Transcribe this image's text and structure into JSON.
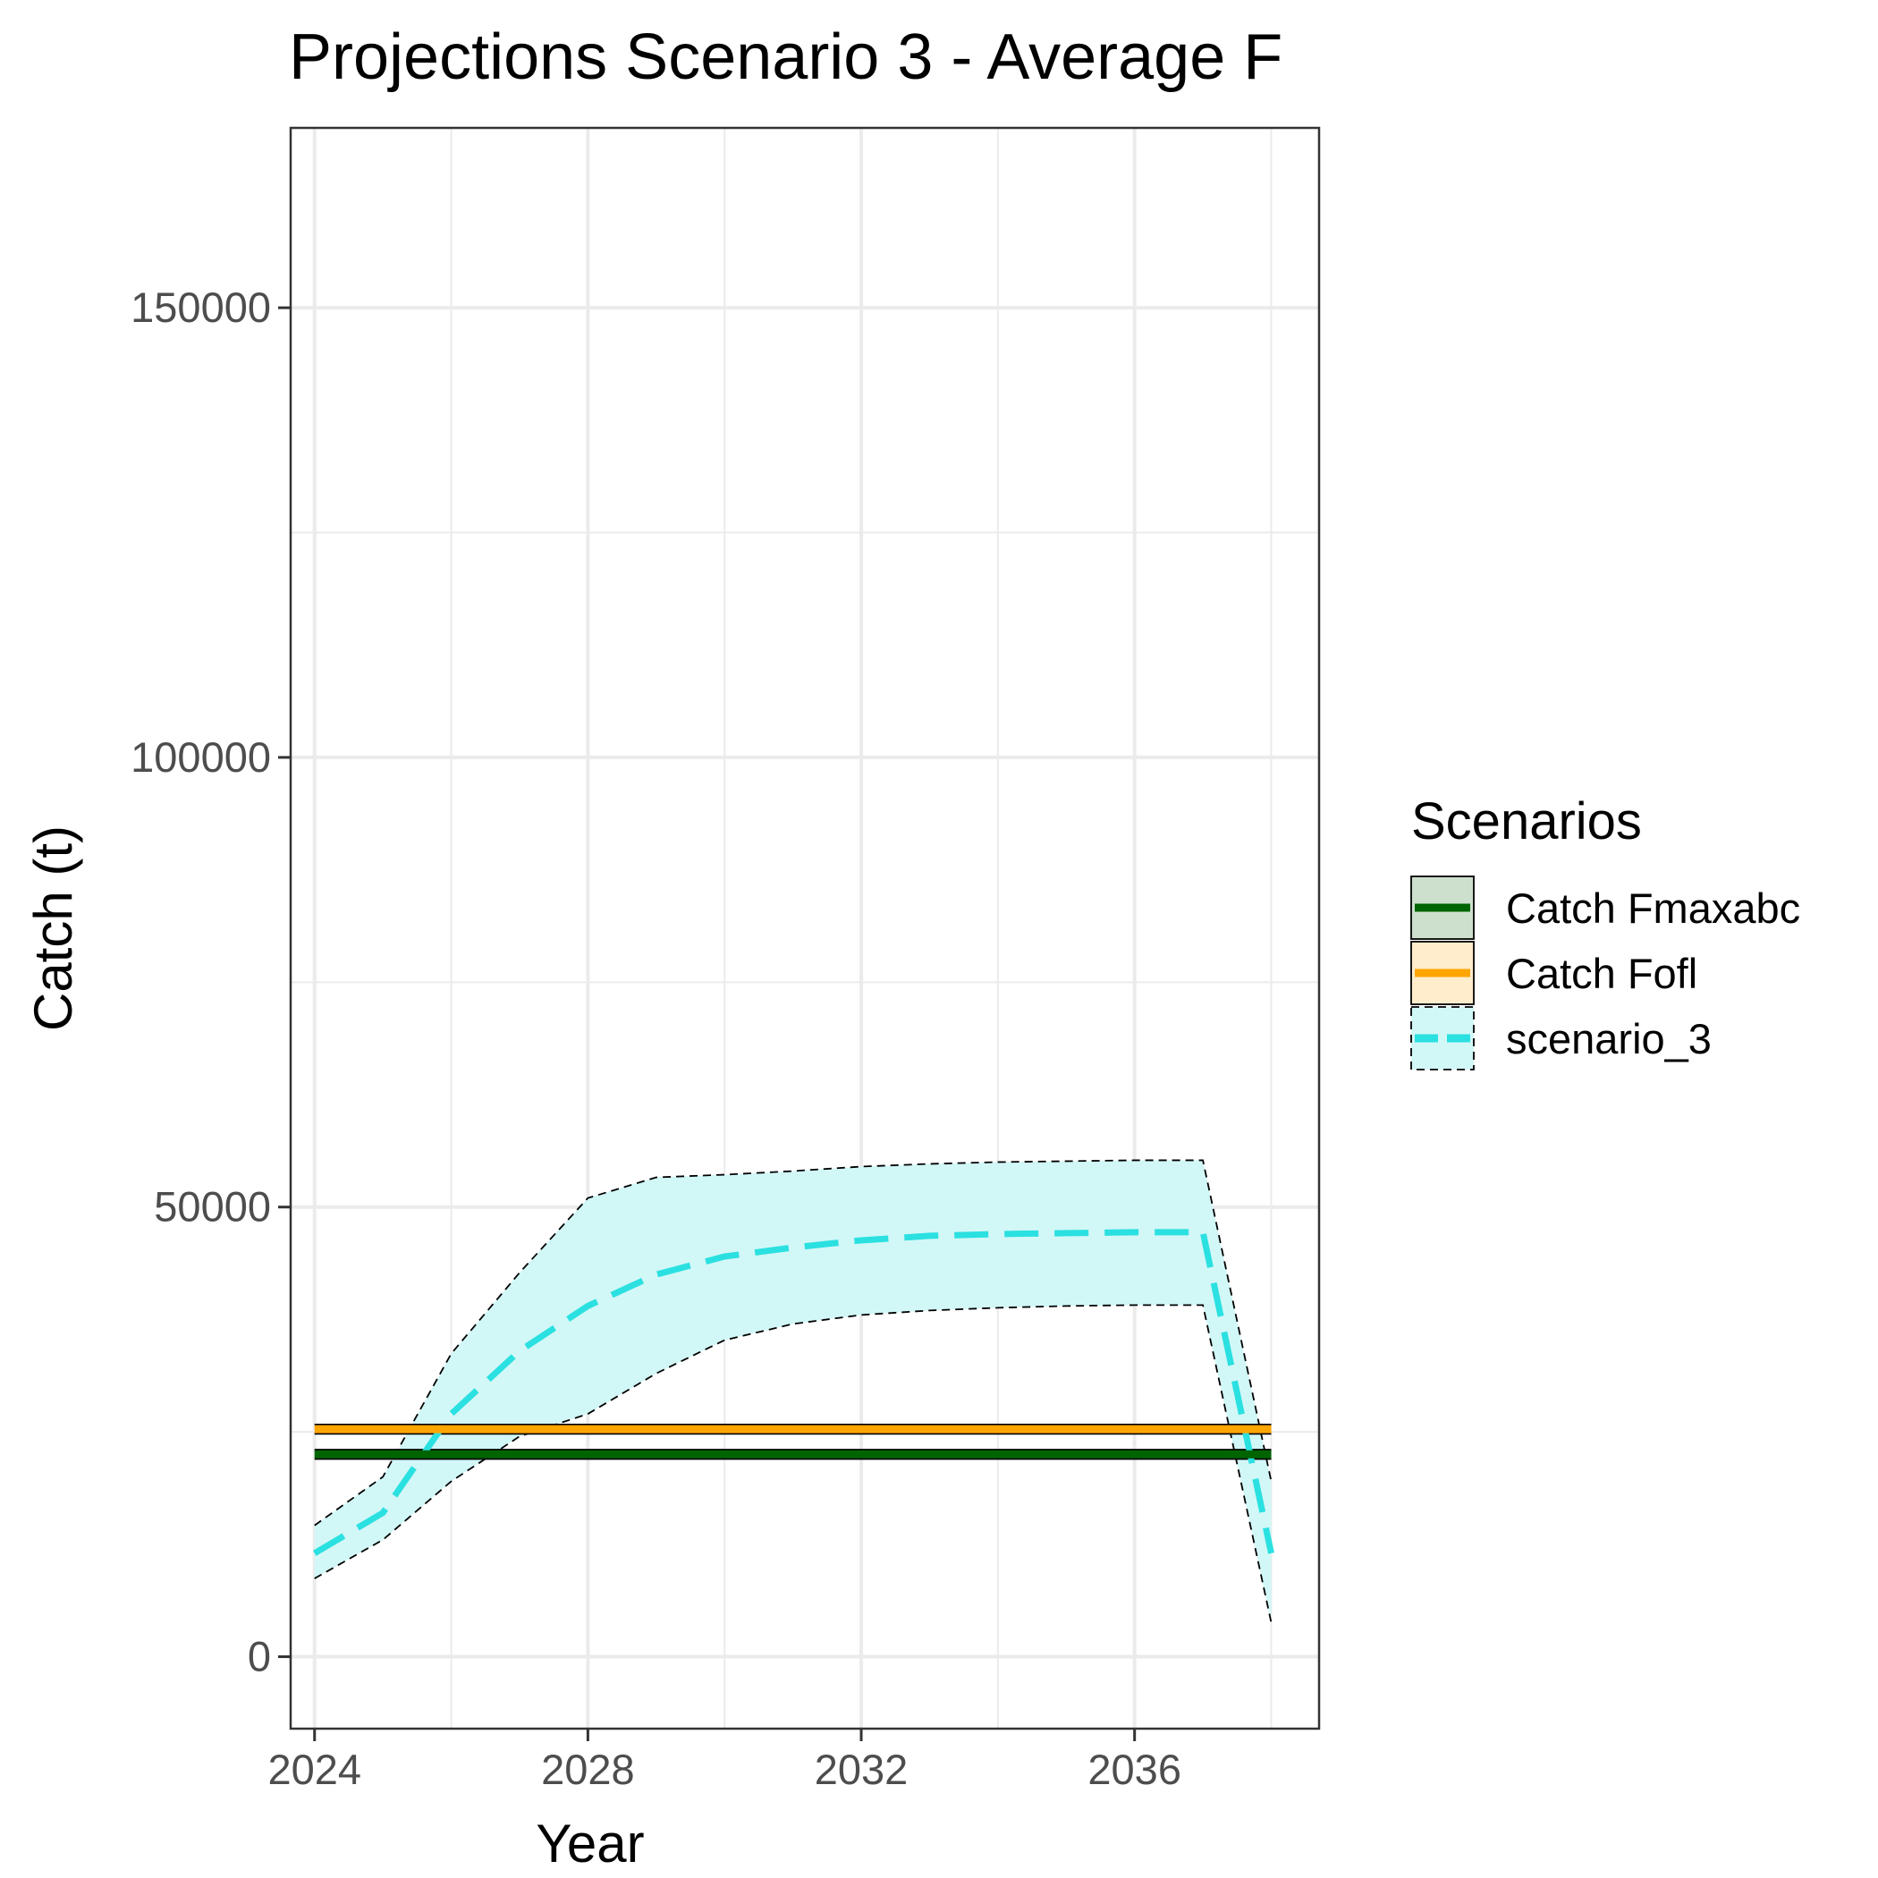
{
  "chart_data": {
    "type": "line",
    "title": "Projections Scenario 3 - Average F",
    "xlabel": "Year",
    "ylabel": "Catch (t)",
    "xlim": [
      2023.65,
      2038.7
    ],
    "ylim": [
      -8000,
      170000
    ],
    "x_ticks": [
      2024,
      2028,
      2032,
      2036
    ],
    "x_minor_ticks": [
      2026,
      2030,
      2034,
      2038
    ],
    "x_tick_labels": [
      "2024",
      "2028",
      "2032",
      "2036"
    ],
    "y_ticks": [
      0,
      50000,
      100000,
      150000
    ],
    "y_minor_ticks": [
      25000,
      75000,
      125000
    ],
    "y_tick_labels": [
      "0",
      "50000",
      "100000",
      "150000"
    ],
    "grid": true,
    "legend": {
      "title": "Scenarios",
      "position": "right",
      "entries": [
        "Catch Fmaxabc",
        "Catch Fofl",
        "scenario_3"
      ]
    },
    "colors": {
      "catch_fmaxabc": "#006400",
      "catch_fmaxabc_fill": "#cde0cd",
      "catch_fofl": "#ffa500",
      "catch_fofl_fill": "#ffedcc",
      "scenario_3": "#2be0e0",
      "scenario_3_fill": "#d2f7f7",
      "grid": "#ebebeb",
      "panel_border": "#333333"
    },
    "x": [
      2024,
      2025,
      2026,
      2027,
      2028,
      2029,
      2030,
      2031,
      2032,
      2033,
      2034,
      2035,
      2036,
      2037,
      2038
    ],
    "series": [
      {
        "name": "Catch Fmaxabc",
        "line_style": "solid",
        "values": [
          22500,
          22500,
          22500,
          22500,
          22500,
          22500,
          22500,
          22500,
          22500,
          22500,
          22500,
          22500,
          22500,
          22500,
          22500
        ],
        "lower": [
          22000,
          22000,
          22000,
          22000,
          22000,
          22000,
          22000,
          22000,
          22000,
          22000,
          22000,
          22000,
          22000,
          22000,
          22000
        ],
        "upper": [
          23000,
          23000,
          23000,
          23000,
          23000,
          23000,
          23000,
          23000,
          23000,
          23000,
          23000,
          23000,
          23000,
          23000,
          23000
        ]
      },
      {
        "name": "Catch Fofl",
        "line_style": "solid",
        "values": [
          25300,
          25300,
          25300,
          25300,
          25300,
          25300,
          25300,
          25300,
          25300,
          25300,
          25300,
          25300,
          25300,
          25300,
          25300
        ],
        "lower": [
          24800,
          24800,
          24800,
          24800,
          24800,
          24800,
          24800,
          24800,
          24800,
          24800,
          24800,
          24800,
          24800,
          24800,
          24800
        ],
        "upper": [
          25800,
          25800,
          25800,
          25800,
          25800,
          25800,
          25800,
          25800,
          25800,
          25800,
          25800,
          25800,
          25800,
          25800,
          25800
        ]
      },
      {
        "name": "scenario_3",
        "line_style": "dashed",
        "values": [
          11500,
          16000,
          27000,
          34000,
          39000,
          42500,
          44500,
          45500,
          46300,
          46800,
          47000,
          47100,
          47200,
          47200,
          11500
        ],
        "lower": [
          8700,
          13000,
          19500,
          24500,
          27000,
          31500,
          35200,
          37000,
          38000,
          38500,
          38800,
          39000,
          39100,
          39100,
          3800
        ],
        "upper": [
          14600,
          20000,
          33700,
          42700,
          51000,
          53300,
          53600,
          54000,
          54500,
          54800,
          55000,
          55100,
          55200,
          55200,
          19500
        ]
      }
    ]
  }
}
